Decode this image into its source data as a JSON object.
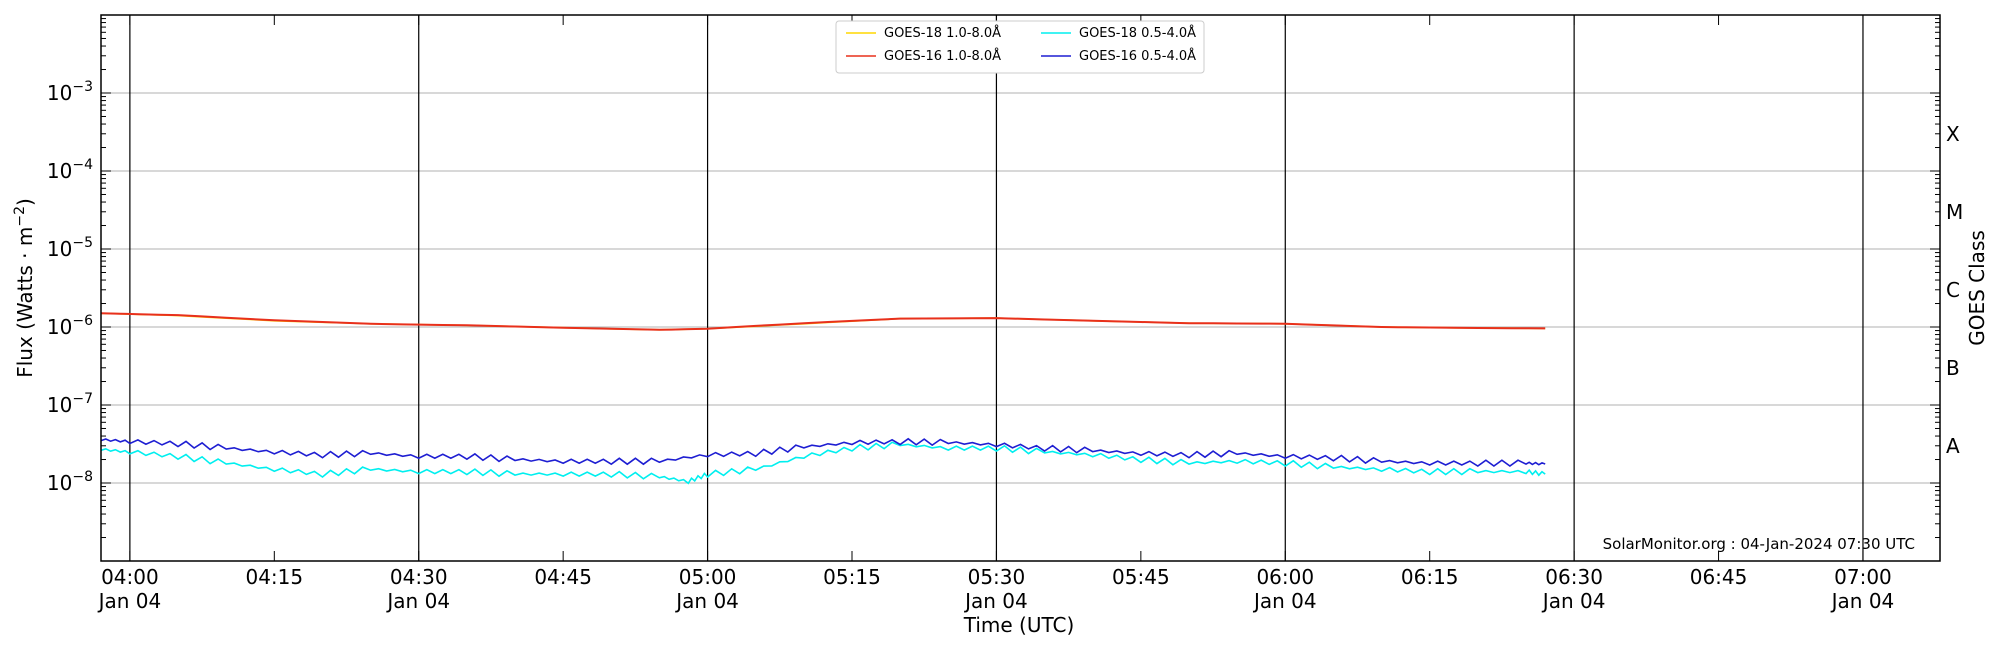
{
  "chart_data": {
    "type": "line",
    "title": "",
    "xlabel": "Time (UTC)",
    "ylabel": "Flux (Watts · m",
    "ylabel_sup": "−2",
    "ylabel_close": ")",
    "y2label": "GOES Class",
    "yscale": "log",
    "ylim": [
      1e-09,
      0.01
    ],
    "xlim": [
      "03:57",
      "07:08"
    ],
    "grid": "horizontal",
    "legend_position": "top-center",
    "y_ticks": [
      {
        "value": 1e-08,
        "base": "10",
        "exp": "−8"
      },
      {
        "value": 1e-07,
        "base": "10",
        "exp": "−7"
      },
      {
        "value": 1e-06,
        "base": "10",
        "exp": "−6"
      },
      {
        "value": 1e-05,
        "base": "10",
        "exp": "−5"
      },
      {
        "value": 0.0001,
        "base": "10",
        "exp": "−4"
      },
      {
        "value": 0.001,
        "base": "10",
        "exp": "−3"
      }
    ],
    "goes_classes": [
      {
        "label": "A",
        "value": 3e-08
      },
      {
        "label": "B",
        "value": 3e-07
      },
      {
        "label": "C",
        "value": 3e-06
      },
      {
        "label": "M",
        "value": 3e-05
      },
      {
        "label": "X",
        "value": 0.0003
      }
    ],
    "x_ticks": [
      {
        "time": "04:00",
        "date": "Jan 04",
        "major": true
      },
      {
        "time": "04:15",
        "date": "",
        "major": false
      },
      {
        "time": "04:30",
        "date": "Jan 04",
        "major": true
      },
      {
        "time": "04:45",
        "date": "",
        "major": false
      },
      {
        "time": "05:00",
        "date": "Jan 04",
        "major": true
      },
      {
        "time": "05:15",
        "date": "",
        "major": false
      },
      {
        "time": "05:30",
        "date": "Jan 04",
        "major": true
      },
      {
        "time": "05:45",
        "date": "",
        "major": false
      },
      {
        "time": "06:00",
        "date": "Jan 04",
        "major": true
      },
      {
        "time": "06:15",
        "date": "",
        "major": false
      },
      {
        "time": "06:30",
        "date": "Jan 04",
        "major": true
      },
      {
        "time": "06:45",
        "date": "",
        "major": false
      },
      {
        "time": "07:00",
        "date": "Jan 04",
        "major": true
      }
    ],
    "series": [
      {
        "name": "GOES-18 1.0-8.0Å",
        "color": "#FFD700",
        "x": [
          "03:57",
          "04:05",
          "04:15",
          "04:25",
          "04:35",
          "04:45",
          "04:55",
          "05:00",
          "05:10",
          "05:20",
          "05:30",
          "05:40",
          "05:50",
          "06:00",
          "06:10",
          "06:20",
          "06:27"
        ],
        "values": [
          1.5e-06,
          1.4e-06,
          1.2e-06,
          1.1e-06,
          1.05e-06,
          9.8e-07,
          9.2e-07,
          9.5e-07,
          1.1e-06,
          1.28e-06,
          1.3e-06,
          1.2e-06,
          1.12e-06,
          1.1e-06,
          1e-06,
          9.7e-07,
          9.6e-07
        ]
      },
      {
        "name": "GOES-16 1.0-8.0Å",
        "color": "#E8301C",
        "x": [
          "03:57",
          "04:05",
          "04:15",
          "04:25",
          "04:35",
          "04:45",
          "04:55",
          "05:00",
          "05:10",
          "05:20",
          "05:30",
          "05:40",
          "05:50",
          "06:00",
          "06:10",
          "06:20",
          "06:27"
        ],
        "values": [
          1.5e-06,
          1.42e-06,
          1.22e-06,
          1.1e-06,
          1.05e-06,
          9.8e-07,
          9.2e-07,
          9.5e-07,
          1.12e-06,
          1.28e-06,
          1.3e-06,
          1.2e-06,
          1.12e-06,
          1.1e-06,
          1e-06,
          9.7e-07,
          9.6e-07
        ]
      },
      {
        "name": "GOES-18 0.5-4.0Å",
        "color": "#00EFEF",
        "x": [
          "03:57",
          "04:00",
          "04:05",
          "04:10",
          "04:15",
          "04:20",
          "04:25",
          "04:30",
          "04:35",
          "04:40",
          "04:45",
          "04:50",
          "04:55",
          "04:58",
          "05:00",
          "05:05",
          "05:10",
          "05:15",
          "05:20",
          "05:25",
          "05:30",
          "05:35",
          "05:40",
          "05:45",
          "05:50",
          "05:55",
          "06:00",
          "06:05",
          "06:10",
          "06:15",
          "06:20",
          "06:25",
          "06:27"
        ],
        "values": [
          2.7e-08,
          2.5e-08,
          2.2e-08,
          1.8e-08,
          1.5e-08,
          1.3e-08,
          1.5e-08,
          1.4e-08,
          1.4e-08,
          1.3e-08,
          1.3e-08,
          1.3e-08,
          1.2e-08,
          1.05e-08,
          1.3e-08,
          1.5e-08,
          2.2e-08,
          2.8e-08,
          3.1e-08,
          2.8e-08,
          2.8e-08,
          2.5e-08,
          2.3e-08,
          2e-08,
          1.8e-08,
          1.9e-08,
          1.8e-08,
          1.6e-08,
          1.5e-08,
          1.4e-08,
          1.4e-08,
          1.4e-08,
          1.3e-08
        ]
      },
      {
        "name": "GOES-16 0.5-4.0Å",
        "color": "#1E1ED2",
        "x": [
          "03:57",
          "04:00",
          "04:05",
          "04:10",
          "04:15",
          "04:20",
          "04:25",
          "04:30",
          "04:35",
          "04:40",
          "04:45",
          "04:50",
          "04:55",
          "05:00",
          "05:05",
          "05:10",
          "05:15",
          "05:20",
          "05:25",
          "05:30",
          "05:35",
          "05:40",
          "05:45",
          "05:50",
          "05:55",
          "06:00",
          "06:05",
          "06:10",
          "06:15",
          "06:20",
          "06:25",
          "06:27"
        ],
        "values": [
          3.6e-08,
          3.4e-08,
          3.2e-08,
          2.8e-08,
          2.5e-08,
          2.3e-08,
          2.4e-08,
          2.2e-08,
          2.2e-08,
          2e-08,
          1.9e-08,
          1.9e-08,
          1.9e-08,
          2.3e-08,
          2.4e-08,
          2.9e-08,
          3.3e-08,
          3.4e-08,
          3.3e-08,
          3.1e-08,
          2.8e-08,
          2.6e-08,
          2.4e-08,
          2.3e-08,
          2.4e-08,
          2.2e-08,
          2.1e-08,
          1.9e-08,
          1.8e-08,
          1.8e-08,
          1.8e-08,
          1.75e-08
        ]
      }
    ],
    "annotation": "SolarMonitor.org : 04-Jan-2024 07:30 UTC"
  }
}
